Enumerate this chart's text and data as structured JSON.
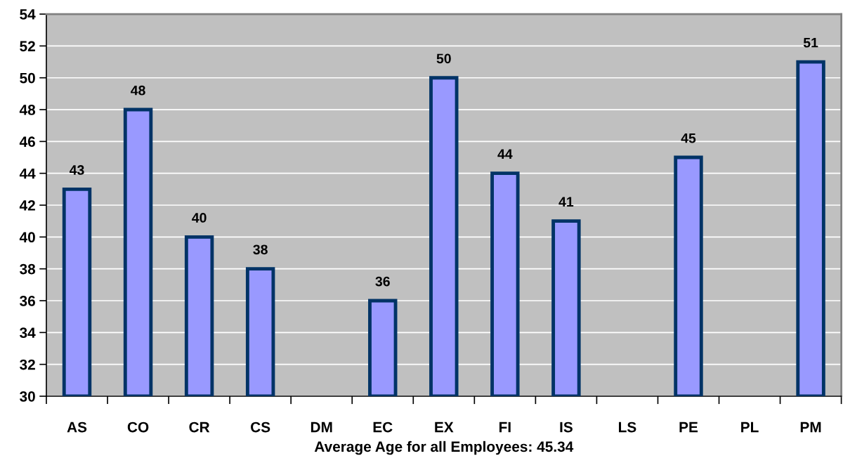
{
  "chart_data": {
    "type": "bar",
    "categories": [
      "AS",
      "CO",
      "CR",
      "CS",
      "DM",
      "EC",
      "EX",
      "FI",
      "IS",
      "LS",
      "PE",
      "PL",
      "PM"
    ],
    "values": [
      43,
      48,
      40,
      38,
      null,
      36,
      50,
      44,
      41,
      null,
      45,
      null,
      51
    ],
    "color": "#9999ff",
    "xlabel": "Average Age for all Employees: 45.34",
    "ylim": [
      30,
      54
    ],
    "yticks": [
      30,
      32,
      34,
      36,
      38,
      40,
      42,
      44,
      46,
      48,
      50,
      52,
      54
    ],
    "grid": "y",
    "data_labels": true,
    "legend": false
  }
}
